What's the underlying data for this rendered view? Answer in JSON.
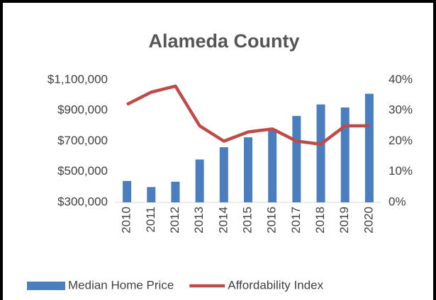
{
  "chart_data": {
    "type": "bar-line",
    "title": "Alameda County",
    "categories": [
      "2010",
      "2011",
      "2012",
      "2013",
      "2014",
      "2015",
      "2016",
      "2017",
      "2018",
      "2019",
      "2020"
    ],
    "series": [
      {
        "name": "Median Home Price",
        "type": "bar",
        "color": "#4a7ebf",
        "axis": "y",
        "values": [
          440000,
          400000,
          435000,
          580000,
          660000,
          725000,
          780000,
          865000,
          940000,
          920000,
          1010000
        ]
      },
      {
        "name": "Affordability Index",
        "type": "line",
        "color": "#be4b48",
        "axis": "y2",
        "values": [
          32,
          36,
          38,
          25,
          20,
          23,
          24,
          20,
          19,
          25,
          25
        ]
      }
    ],
    "ylim": [
      300000,
      1100000
    ],
    "yticks": [
      {
        "value": 300000,
        "label": "$300,000"
      },
      {
        "value": 500000,
        "label": "$500,000"
      },
      {
        "value": 700000,
        "label": "$700,000"
      },
      {
        "value": 900000,
        "label": "$900,000"
      },
      {
        "value": 1100000,
        "label": "$1,100,000"
      }
    ],
    "y2lim": [
      0,
      40
    ],
    "y2ticks": [
      {
        "value": 0,
        "label": "0%"
      },
      {
        "value": 10,
        "label": "10%"
      },
      {
        "value": 20,
        "label": "20%"
      },
      {
        "value": 30,
        "label": "30%"
      },
      {
        "value": 40,
        "label": "40%"
      }
    ],
    "legend": "bottom"
  }
}
